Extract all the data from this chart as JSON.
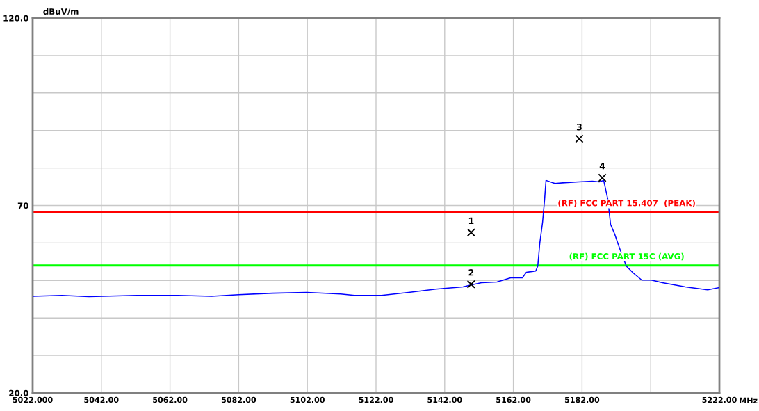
{
  "chart_data": {
    "type": "line",
    "xlabel": "MHz",
    "ylabel": "dBuV/m",
    "xlim": [
      5022,
      5222
    ],
    "ylim": [
      20,
      120
    ],
    "xticks": [
      {
        "value": 5022,
        "label": "5022.000"
      },
      {
        "value": 5042,
        "label": "5042.00"
      },
      {
        "value": 5062,
        "label": "5062.00"
      },
      {
        "value": 5082,
        "label": "5082.00"
      },
      {
        "value": 5102,
        "label": "5102.00"
      },
      {
        "value": 5122,
        "label": "5122.00"
      },
      {
        "value": 5142,
        "label": "5142.00"
      },
      {
        "value": 5162,
        "label": "5162.00"
      },
      {
        "value": 5182,
        "label": "5182.00"
      },
      {
        "value": 5202,
        "label": null
      },
      {
        "value": 5222,
        "label": "5222.00"
      }
    ],
    "yticks": [
      {
        "value": 20,
        "label": "20.0"
      },
      {
        "value": 30,
        "label": null
      },
      {
        "value": 40,
        "label": null
      },
      {
        "value": 50,
        "label": null
      },
      {
        "value": 60,
        "label": null
      },
      70,
      {
        "value": 80,
        "label": null
      },
      {
        "value": 90,
        "label": null
      },
      {
        "value": 100,
        "label": null
      },
      {
        "value": 110,
        "label": null
      },
      {
        "value": 120,
        "label": "120.0"
      }
    ],
    "grid": true,
    "legend": false,
    "series": [
      {
        "color": "#0000ff",
        "marker": "none",
        "line_style": "solid",
        "x": [
          5022.0,
          5030.5,
          5038.4,
          5052.3,
          5064.2,
          5074.1,
          5082.0,
          5091.9,
          5101.8,
          5111.7,
          5115.7,
          5123.6,
          5131.5,
          5139.4,
          5147.3,
          5149.7,
          5152.7,
          5157.2,
          5161.2,
          5164.6,
          5165.8,
          5168.5,
          5169.1,
          5169.7,
          5170.5,
          5171.1,
          5171.5,
          5174.1,
          5177.0,
          5181.0,
          5185.0,
          5187.0,
          5188.3,
          5189.5,
          5190.3,
          5191.5,
          5192.9,
          5194.9,
          5196.9,
          5199.4,
          5202.2,
          5205.4,
          5212.1,
          5218.6,
          5222.0
        ],
        "values": [
          45.8,
          46.0,
          45.7,
          46.0,
          46.0,
          45.8,
          46.2,
          46.6,
          46.8,
          46.4,
          46.0,
          46.0,
          46.8,
          47.7,
          48.3,
          48.8,
          49.4,
          49.6,
          50.7,
          50.7,
          52.2,
          52.5,
          53.8,
          60.0,
          65.5,
          71.7,
          76.7,
          75.9,
          76.1,
          76.3,
          76.5,
          76.3,
          76.7,
          71.7,
          65.0,
          62.4,
          58.7,
          53.8,
          52.0,
          50.1,
          50.1,
          49.4,
          48.3,
          47.5,
          48.1
        ]
      },
      {
        "type": "scatter",
        "color": "#000000",
        "marker": "cross",
        "x": [
          5149.7,
          5149.7,
          5181.2,
          5187.9
        ],
        "values": [
          62.8,
          49.0,
          87.8,
          77.4
        ]
      }
    ],
    "ref_lines": [
      {
        "axis": "y",
        "value": 68.2,
        "label": "(RF) FCC PART 15.407  (PEAK)",
        "color": "#ff0000"
      },
      {
        "axis": "y",
        "value": 54,
        "label": "(RF) FCC PART 15C (AVG)",
        "color": "#00ff00"
      }
    ],
    "annotations": [
      {
        "text": "1",
        "x": 5149.7,
        "y": 62.8
      },
      {
        "text": "2",
        "x": 5149.7,
        "y": 49.0
      },
      {
        "text": "3",
        "x": 5181.2,
        "y": 87.8
      },
      {
        "text": "4",
        "x": 5187.9,
        "y": 77.4
      }
    ]
  }
}
